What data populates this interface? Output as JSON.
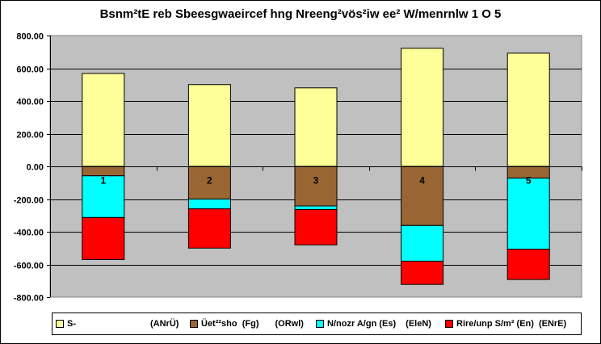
{
  "chart_data": {
    "type": "bar",
    "stacked": true,
    "title": "Bsnm²tE reb Sbeesgwaeircef hng Nreeng²vös²iw ee² W/menrnlw 1 O 5",
    "categories": [
      "1",
      "2",
      "3",
      "4",
      "5"
    ],
    "ylim": [
      -800,
      800
    ],
    "yticks": [
      800,
      600,
      400,
      200,
      0,
      -200,
      -400,
      -600,
      -800
    ],
    "ytick_labels": [
      "800.00",
      "600.00",
      "400.00",
      "200.00",
      "0.00",
      "-200.00",
      "-400.00",
      "-600.00",
      "-800.00"
    ],
    "grid": "horizontal",
    "legend_position": "bottom",
    "plot_background": "#c0c0c0",
    "series": [
      {
        "name": "S-",
        "unit": "(ANrÜ)",
        "color": "#ffff99",
        "values": [
          568,
          500,
          480,
          722,
          692
        ]
      },
      {
        "name": "Üet²²sho  (Fg)",
        "unit": "(ORwl)",
        "color": "#996633",
        "values": [
          -58,
          -200,
          -242,
          -362,
          -72
        ]
      },
      {
        "name": "N/nozr A/gn (Es)",
        "unit": "(EleN)",
        "color": "#00ffff",
        "values": [
          -255,
          -60,
          -22,
          -218,
          -435
        ]
      },
      {
        "name": "Rire/unp S/m² (En)",
        "unit": "(ENrE)",
        "color": "#ff0000",
        "values": [
          -257,
          -240,
          -216,
          -142,
          -185
        ]
      }
    ]
  }
}
